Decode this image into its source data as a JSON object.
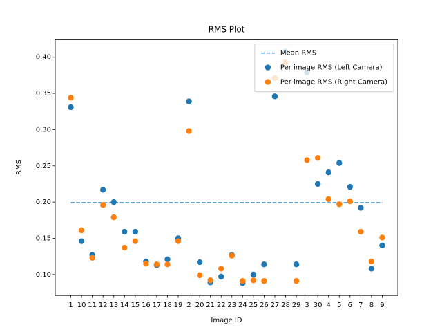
{
  "chart_data": {
    "type": "scatter",
    "title": "RMS Plot",
    "x_label": "Image ID",
    "y_label": "RMS",
    "categories": [
      "1",
      "10",
      "11",
      "12",
      "13",
      "14",
      "15",
      "16",
      "17",
      "18",
      "19",
      "2",
      "20",
      "21",
      "22",
      "23",
      "24",
      "25",
      "26",
      "27",
      "28",
      "29",
      "3",
      "30",
      "4",
      "5",
      "6",
      "7",
      "8",
      "9"
    ],
    "series": [
      {
        "name": "Per image RMS (Left Camera)",
        "color": "#1f77b4",
        "values": [
          0.331,
          0.146,
          0.127,
          0.217,
          0.2,
          0.159,
          0.159,
          0.118,
          0.113,
          0.121,
          0.15,
          0.339,
          0.117,
          0.089,
          0.097,
          0.127,
          0.088,
          0.1,
          0.114,
          0.346,
          0.408,
          0.114,
          0.379,
          0.225,
          0.241,
          0.254,
          0.221,
          0.192,
          0.108,
          0.14
        ]
      },
      {
        "name": "Per image RMS (Right Camera)",
        "color": "#ff7f0e",
        "values": [
          0.344,
          0.161,
          0.123,
          0.196,
          0.179,
          0.137,
          0.146,
          0.115,
          0.114,
          0.114,
          0.146,
          0.298,
          0.099,
          0.092,
          0.108,
          0.126,
          0.091,
          0.092,
          0.091,
          0.371,
          0.393,
          0.091,
          0.258,
          0.261,
          0.204,
          0.197,
          0.201,
          0.159,
          0.118,
          0.151
        ]
      }
    ],
    "mean_line": {
      "name": "Mean RMS",
      "color": "#1f77b4",
      "style": "dashed",
      "value": 0.199
    },
    "ylim": [
      0.071,
      0.424
    ],
    "yticks": [
      {
        "value": 0.1,
        "label": "0.10"
      },
      {
        "value": 0.15,
        "label": "0.15"
      },
      {
        "value": 0.2,
        "label": "0.20"
      },
      {
        "value": 0.25,
        "label": "0.25"
      },
      {
        "value": 0.3,
        "label": "0.30"
      },
      {
        "value": 0.35,
        "label": "0.35"
      },
      {
        "value": 0.4,
        "label": "0.40"
      }
    ],
    "legend": "upper right",
    "grid": false
  }
}
